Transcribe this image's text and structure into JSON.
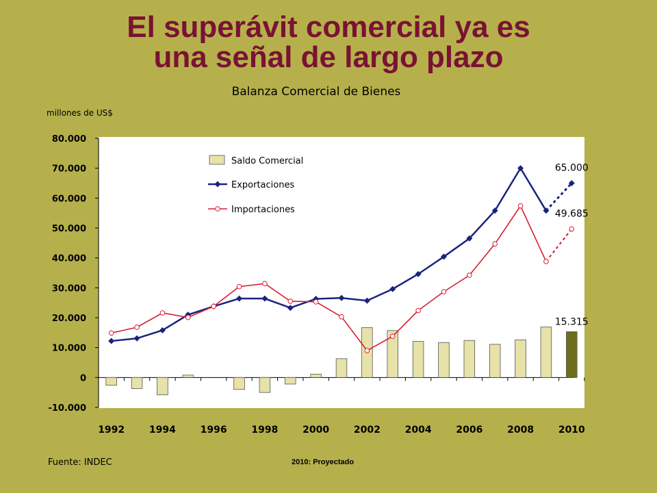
{
  "slide": {
    "title_line1": "El superávit comercial ya es",
    "title_line2": "una señal de largo plazo",
    "source": "Fuente: INDEC",
    "note": "2010: Proyectado"
  },
  "colors": {
    "background": "#b5b04c",
    "title": "#7a1233",
    "bars": "#e6e2a8",
    "bar_projected": "#6d6d1a",
    "exports": "#1a237e",
    "imports": "#d81b34"
  },
  "chart_data": {
    "type": "bar+line",
    "title": "Balanza Comercial de Bienes",
    "ylabel": "millones de US$",
    "ylim": [
      -10000,
      80000
    ],
    "yticks": [
      80000,
      70000,
      60000,
      50000,
      40000,
      30000,
      20000,
      10000,
      0,
      -10000
    ],
    "ytick_labels": [
      "80.000",
      "70.000",
      "60.000",
      "50.000",
      "40.000",
      "30.000",
      "20.000",
      "10.000",
      "0",
      "-10.000"
    ],
    "x": [
      1992,
      1993,
      1994,
      1995,
      1996,
      1997,
      1998,
      1999,
      2000,
      2001,
      2002,
      2003,
      2004,
      2005,
      2006,
      2007,
      2008,
      2009,
      2010
    ],
    "xtick_labels": [
      "1992",
      "1994",
      "1996",
      "1998",
      "2000",
      "2002",
      "2004",
      "2006",
      "2008",
      "2010"
    ],
    "xtick_values": [
      1992,
      1994,
      1996,
      1998,
      2000,
      2002,
      2004,
      2006,
      2008,
      2010
    ],
    "projected_from": 2010,
    "legend_position": "top-left",
    "grid": false,
    "series": [
      {
        "name": "Saldo Comercial",
        "kind": "bar",
        "values": [
          -2600,
          -3700,
          -5800,
          800,
          0,
          -4000,
          -5000,
          -2200,
          1100,
          6300,
          16700,
          15700,
          12100,
          11700,
          12400,
          11100,
          12600,
          16900,
          15315
        ]
      },
      {
        "name": "Exportaciones",
        "kind": "line",
        "marker": "diamond",
        "values": [
          12200,
          13100,
          15800,
          21000,
          23800,
          26400,
          26400,
          23300,
          26300,
          26600,
          25700,
          29600,
          34600,
          40400,
          46500,
          55800,
          70000,
          55800,
          65000
        ]
      },
      {
        "name": "Importaciones",
        "kind": "line",
        "marker": "circle",
        "values": [
          14900,
          16800,
          21600,
          20100,
          23800,
          30400,
          31400,
          25500,
          25300,
          20300,
          9000,
          13800,
          22400,
          28700,
          34200,
          44700,
          57400,
          38800,
          49685
        ]
      }
    ],
    "annotations": [
      {
        "label": "65.000",
        "series": "Exportaciones",
        "x": 2010
      },
      {
        "label": "49.685",
        "series": "Importaciones",
        "x": 2010
      },
      {
        "label": "15.315",
        "series": "Saldo Comercial",
        "x": 2010
      }
    ]
  }
}
